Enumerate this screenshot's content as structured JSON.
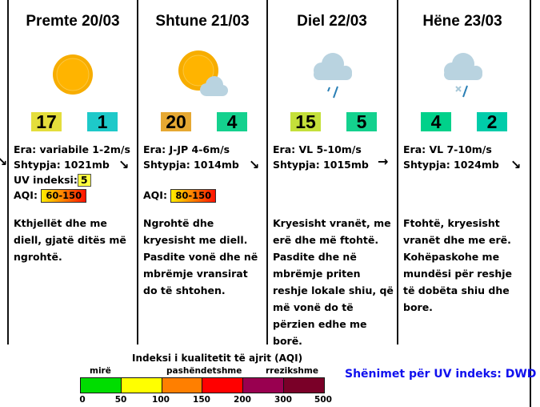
{
  "days": [
    {
      "title": "Premte 20/03",
      "icon": "sun-icon",
      "max": "17",
      "min": "1",
      "max_color": "#e4de3c",
      "min_color": "#1ec9c9",
      "wind": "Era: variabile 1-2m/s",
      "pressure": "Shtypja: 1021mb",
      "uv_label": "UV indeksi:",
      "uv": "5",
      "aqi_label": "AQI:",
      "aqi": "60-150",
      "desc": "Kthjellët dhe me diell, gjatë ditës më ngrohtë."
    },
    {
      "title": "Shtune 21/03",
      "icon": "sun-cloud-icon",
      "max": "20",
      "min": "4",
      "max_color": "#e6a832",
      "min_color": "#14d18e",
      "wind": "Era: J-JP 4-6m/s",
      "pressure": "Shtypja: 1014mb",
      "aqi_label": "AQI:",
      "aqi": "80-150",
      "desc": "Ngrohtë dhe kryesisht me diell.  Pasdite vonë dhe në mbrëmje vransirat do të shtohen."
    },
    {
      "title": "Diel 22/03",
      "icon": "rain-cloud-icon",
      "max": "15",
      "min": "5",
      "max_color": "#c4e03a",
      "min_color": "#14d18e",
      "wind": "Era: VL 5-10m/s",
      "pressure": "Shtypja: 1015mb",
      "desc": "Kryesisht vranët, me erë dhe më ftohtë. Pasdite dhe në mbrëmje priten reshje lokale shiu, që më vonë do të përzien edhe me borë."
    },
    {
      "title": "Hëne 23/03",
      "icon": "sleet-cloud-icon",
      "max": "4",
      "min": "2",
      "max_color": "#00d18a",
      "min_color": "#00ccaa",
      "wind": "Era: VL 7-10m/s",
      "pressure": "Shtypja: 1024mb",
      "desc": "Ftohtë, kryesisht vranët dhe me erë. Kohëpaskohe me mundësi për reshje të dobëta shiu dhe bore."
    }
  ],
  "wind_arrows": [
    "arrow-down-right",
    "arrow-down-right",
    "arrow-down-right",
    "arrow-right",
    "arrow-down-right"
  ],
  "legend": {
    "title": "Indeksi i kualitetit të ajrit (AQI)",
    "categories": [
      "mirë",
      "pashëndetshme",
      "rrezikshme"
    ],
    "ticks": [
      "0",
      "50",
      "100",
      "150",
      "200",
      "300",
      "500"
    ],
    "colors": [
      "#00dd00",
      "#ffff00",
      "#ff7f00",
      "#ff0000",
      "#990050",
      "#7a0028"
    ]
  },
  "uv_note": "Shënimet për UV indeks: DWD"
}
